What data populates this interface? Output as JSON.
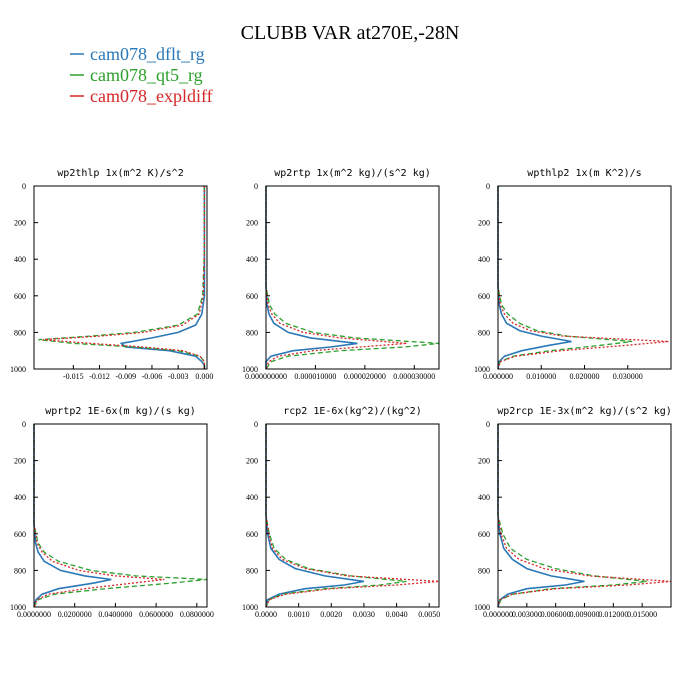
{
  "figure_title": "CLUBB VAR at270E,-28N",
  "legend": [
    {
      "label": "cam078_dflt_rg",
      "color": "#2a78b7",
      "dash": "solid"
    },
    {
      "label": "cam078_qt5_rg",
      "color": "#2ca02c",
      "dash": "dashed"
    },
    {
      "label": "cam078_expldiff",
      "color": "#d62728",
      "dash": "dotted"
    }
  ],
  "chart_data": [
    {
      "type": "line",
      "title": "wp2thlp  1x(m^2 K)/s^2",
      "xlim": [
        -0.0195,
        0.0003
      ],
      "ylim": [
        1000,
        0
      ],
      "y_ticks": [
        0,
        200,
        400,
        600,
        800,
        1000
      ],
      "x_ticks": [
        -0.015,
        -0.012,
        -0.009,
        -0.006,
        -0.003,
        0.0
      ],
      "x_tick_labels": [
        "-0.015",
        "-0.012",
        "-0.009",
        "-0.006",
        "-0.003",
        "0.000"
      ],
      "series": [
        {
          "y": [
            0,
            350,
            600,
            700,
            760,
            800,
            830,
            860,
            880,
            900,
            930,
            960,
            980,
            1000
          ],
          "x": [
            0,
            0,
            0,
            -0.0003,
            -0.001,
            -0.003,
            -0.006,
            -0.0095,
            -0.009,
            -0.004,
            -0.001,
            -0.0003,
            0,
            0
          ]
        },
        {
          "y": [
            0,
            350,
            600,
            700,
            760,
            800,
            820,
            840,
            860,
            880,
            900,
            930,
            960,
            1000
          ],
          "x": [
            0,
            0,
            -0.0002,
            -0.0008,
            -0.003,
            -0.008,
            -0.013,
            -0.019,
            -0.015,
            -0.008,
            -0.003,
            -0.0005,
            0,
            0
          ]
        },
        {
          "y": [
            0,
            350,
            600,
            700,
            760,
            800,
            820,
            840,
            860,
            880,
            900,
            930,
            960,
            1000
          ],
          "x": [
            0,
            0,
            -0.0001,
            -0.0006,
            -0.0025,
            -0.007,
            -0.012,
            -0.0185,
            -0.013,
            -0.007,
            -0.0025,
            -0.0005,
            0,
            0
          ]
        }
      ]
    },
    {
      "type": "line",
      "title": "wp2rtp  1x(m^2 kg)/(s^2 kg)",
      "xlim": [
        0,
        3.5e-05
      ],
      "ylim": [
        1000,
        0
      ],
      "y_ticks": [
        0,
        200,
        400,
        600,
        800,
        1000
      ],
      "x_ticks": [
        0.0,
        1e-05,
        2e-05,
        3e-05
      ],
      "x_tick_labels": [
        "0.000000000",
        "0.000010000",
        "0.000020000",
        "0.000030000"
      ],
      "series": [
        {
          "y": [
            0,
            550,
            650,
            700,
            750,
            800,
            830,
            860,
            880,
            900,
            930,
            960,
            1000
          ],
          "x": [
            0,
            0,
            2e-07,
            6e-07,
            1.6e-06,
            4.5e-06,
            9e-06,
            1.85e-05,
            1.3e-05,
            5.5e-06,
            1e-06,
            0,
            0
          ]
        },
        {
          "y": [
            0,
            550,
            650,
            700,
            750,
            800,
            830,
            860,
            880,
            900,
            930,
            960,
            1000
          ],
          "x": [
            0,
            0,
            7e-07,
            1.8e-06,
            4e-06,
            9.5e-06,
            1.8e-05,
            3.5e-05,
            2.8e-05,
            1.5e-05,
            4.5e-06,
            1e-06,
            0
          ]
        },
        {
          "y": [
            0,
            550,
            650,
            700,
            750,
            800,
            830,
            860,
            880,
            900,
            930,
            960,
            1000
          ],
          "x": [
            0,
            0,
            4e-07,
            1.2e-06,
            2.8e-06,
            7.5e-06,
            1.5e-05,
            2.85e-05,
            1.9e-05,
            9.5e-06,
            2.5e-06,
            5e-07,
            0
          ]
        }
      ]
    },
    {
      "type": "line",
      "title": "wpthlp2  1x(m K^2)/s",
      "xlim": [
        0,
        0.04
      ],
      "ylim": [
        1000,
        0
      ],
      "y_ticks": [
        0,
        200,
        400,
        600,
        800,
        1000
      ],
      "x_ticks": [
        0.0,
        0.01,
        0.02,
        0.03
      ],
      "x_tick_labels": [
        "0.000000",
        "0.010000",
        "0.020000",
        "0.030000"
      ],
      "series": [
        {
          "y": [
            0,
            550,
            650,
            700,
            750,
            790,
            820,
            850,
            870,
            900,
            930,
            960,
            1000
          ],
          "x": [
            0,
            0,
            0.0003,
            0.0008,
            0.002,
            0.005,
            0.01,
            0.017,
            0.012,
            0.0055,
            0.0015,
            0.0002,
            0
          ]
        },
        {
          "y": [
            0,
            550,
            650,
            700,
            750,
            790,
            820,
            850,
            870,
            900,
            930,
            960,
            1000
          ],
          "x": [
            0,
            0,
            0.0008,
            0.0023,
            0.005,
            0.009,
            0.016,
            0.031,
            0.024,
            0.012,
            0.0035,
            0.0005,
            0
          ]
        },
        {
          "y": [
            0,
            550,
            650,
            700,
            750,
            790,
            820,
            850,
            870,
            900,
            930,
            960,
            1000
          ],
          "x": [
            0,
            0,
            0.0005,
            0.0015,
            0.0035,
            0.0075,
            0.015,
            0.0395,
            0.03,
            0.0145,
            0.004,
            0.0005,
            0
          ]
        }
      ]
    },
    {
      "type": "line",
      "title": "wprtp2  1E-6x(m kg)/(s kg)",
      "xlim": [
        0,
        0.085
      ],
      "ylim": [
        1000,
        0
      ],
      "y_ticks": [
        0,
        200,
        400,
        600,
        800,
        1000
      ],
      "x_ticks": [
        0.0,
        0.02,
        0.04,
        0.06,
        0.08
      ],
      "x_tick_labels": [
        "0.0000000",
        "0.0200000",
        "0.0400000",
        "0.0600000",
        "0.0800000"
      ],
      "series": [
        {
          "y": [
            0,
            550,
            650,
            700,
            750,
            800,
            830,
            850,
            870,
            900,
            930,
            960,
            1000
          ],
          "x": [
            0,
            0,
            0.0008,
            0.002,
            0.005,
            0.013,
            0.025,
            0.038,
            0.029,
            0.012,
            0.004,
            0.001,
            0
          ]
        },
        {
          "y": [
            0,
            550,
            650,
            700,
            750,
            800,
            830,
            850,
            870,
            900,
            930,
            960,
            1000
          ],
          "x": [
            0,
            0,
            0.002,
            0.005,
            0.012,
            0.028,
            0.05,
            0.085,
            0.067,
            0.035,
            0.01,
            0.002,
            0
          ]
        },
        {
          "y": [
            0,
            550,
            650,
            700,
            750,
            800,
            830,
            850,
            870,
            900,
            930,
            960,
            1000
          ],
          "x": [
            0,
            0,
            0.0015,
            0.004,
            0.009,
            0.022,
            0.04,
            0.064,
            0.048,
            0.025,
            0.007,
            0.0015,
            0
          ]
        }
      ]
    },
    {
      "type": "line",
      "title": "rcp2  1E-6x(kg^2)/(kg^2)",
      "xlim": [
        0,
        0.0053
      ],
      "ylim": [
        1000,
        0
      ],
      "y_ticks": [
        0,
        200,
        400,
        600,
        800,
        1000
      ],
      "x_ticks": [
        0.0,
        0.001,
        0.002,
        0.003,
        0.004,
        0.005
      ],
      "x_tick_labels": [
        "0.0000",
        "0.0010",
        "0.0020",
        "0.0030",
        "0.0040",
        "0.0050"
      ],
      "series": [
        {
          "y": [
            0,
            500,
            600,
            680,
            740,
            790,
            830,
            860,
            880,
            900,
            930,
            960,
            1000
          ],
          "x": [
            0,
            0,
            5e-05,
            0.00015,
            0.0004,
            0.0009,
            0.0018,
            0.003,
            0.0024,
            0.0012,
            0.0004,
            5e-05,
            0
          ]
        },
        {
          "y": [
            0,
            500,
            600,
            680,
            740,
            790,
            830,
            860,
            880,
            900,
            930,
            960,
            1000
          ],
          "x": [
            0,
            0,
            0.0001,
            0.00025,
            0.0006,
            0.0013,
            0.0026,
            0.0043,
            0.0035,
            0.0018,
            0.0005,
            0.0001,
            0
          ]
        },
        {
          "y": [
            0,
            500,
            600,
            680,
            740,
            790,
            830,
            860,
            880,
            900,
            930,
            960,
            1000
          ],
          "x": [
            0,
            0,
            8e-05,
            0.0002,
            0.0005,
            0.0012,
            0.0025,
            0.0053,
            0.004,
            0.002,
            0.0006,
            0.0001,
            0
          ]
        }
      ]
    },
    {
      "type": "line",
      "title": "wp2rcp  1E-3x(m^2 kg)/(s^2 kg)",
      "xlim": [
        0,
        0.018
      ],
      "ylim": [
        1000,
        0
      ],
      "y_ticks": [
        0,
        200,
        400,
        600,
        800,
        1000
      ],
      "x_ticks": [
        0.0,
        0.003,
        0.006,
        0.009,
        0.012,
        0.015
      ],
      "x_tick_labels": [
        "0.000000",
        "0.003000",
        "0.006000",
        "0.009000",
        "0.012000",
        "0.015000"
      ],
      "series": [
        {
          "y": [
            0,
            500,
            600,
            680,
            740,
            790,
            830,
            860,
            880,
            900,
            930,
            960,
            1000
          ],
          "x": [
            0,
            0,
            0.0002,
            0.0006,
            0.0015,
            0.003,
            0.0055,
            0.009,
            0.007,
            0.003,
            0.001,
            0.0002,
            0
          ]
        },
        {
          "y": [
            0,
            500,
            600,
            680,
            740,
            790,
            830,
            860,
            880,
            900,
            930,
            960,
            1000
          ],
          "x": [
            0,
            0,
            0.0005,
            0.0013,
            0.003,
            0.006,
            0.01,
            0.0155,
            0.012,
            0.0055,
            0.0015,
            0.0003,
            0
          ]
        },
        {
          "y": [
            0,
            500,
            600,
            680,
            740,
            790,
            830,
            860,
            880,
            900,
            930,
            960,
            1000
          ],
          "x": [
            0,
            0,
            0.0003,
            0.0009,
            0.0022,
            0.0048,
            0.0095,
            0.018,
            0.0135,
            0.006,
            0.0015,
            0.0002,
            0
          ]
        }
      ]
    }
  ]
}
